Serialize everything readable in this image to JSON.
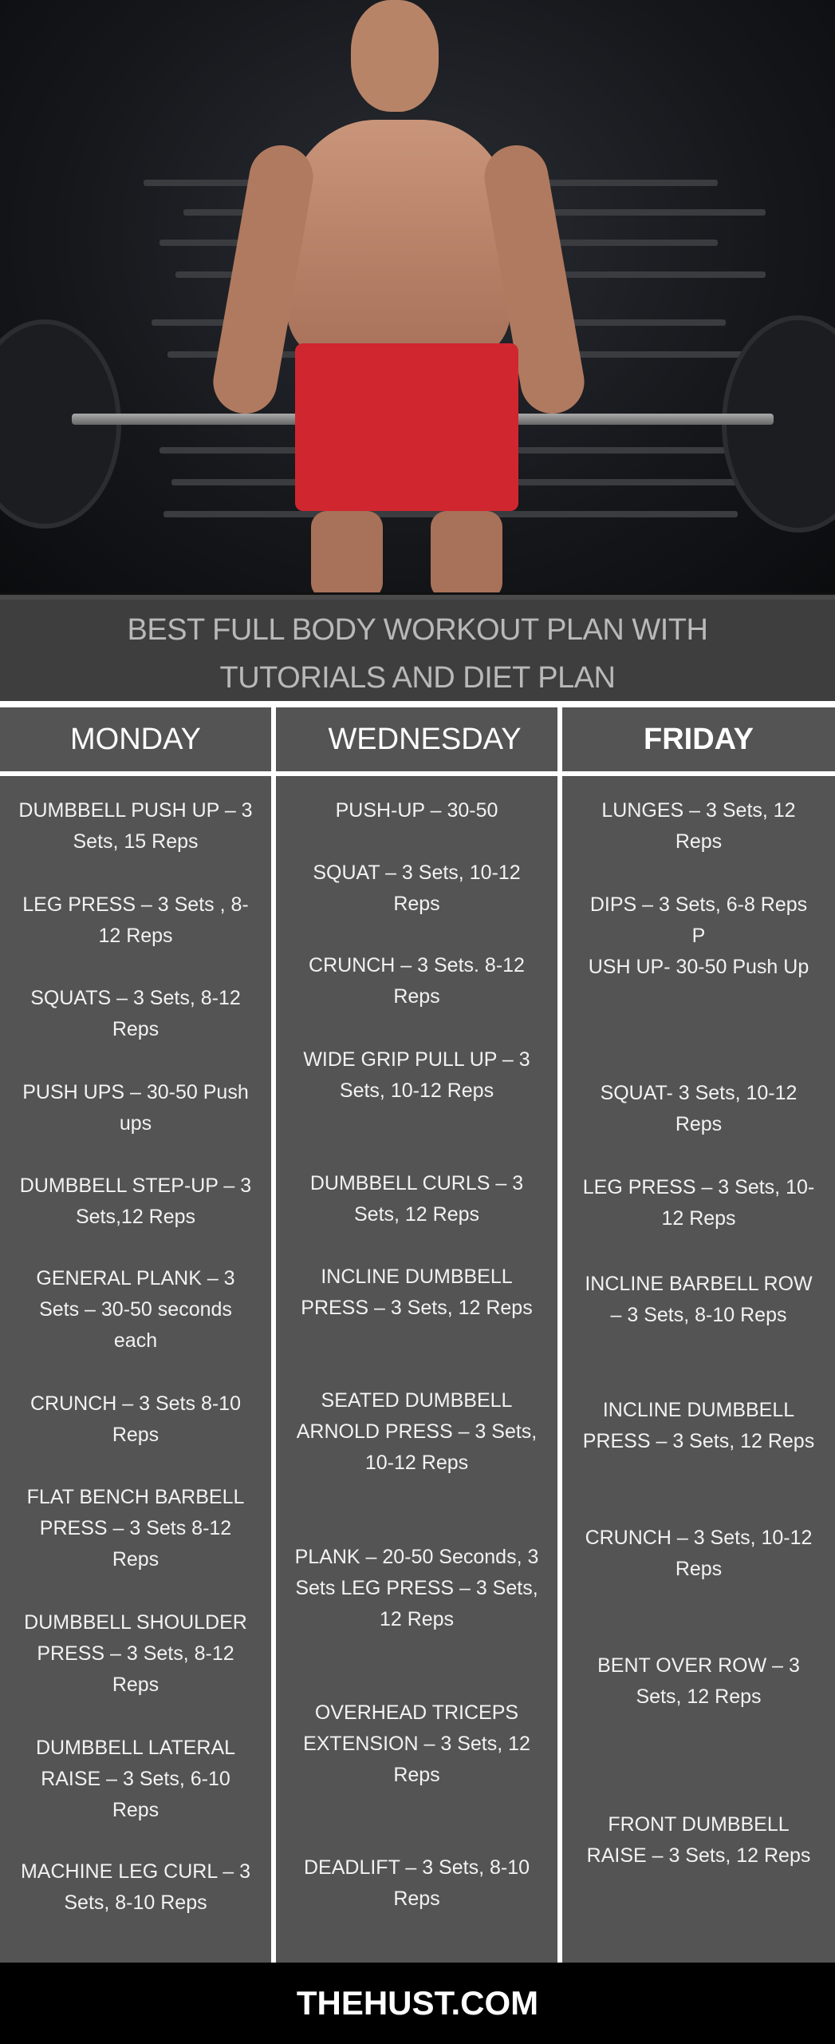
{
  "banner": {
    "title_line1": "BEST FULL BODY WORKOUT PLAN WITH",
    "title_line2": "TUTORIALS AND DIET PLAN"
  },
  "days": [
    {
      "label": "MONDAY",
      "items": [
        "DUMBBELL PUSH UP – 3 Sets, 15 Reps",
        "LEG PRESS – 3 Sets , 8-12 Reps",
        "SQUATS – 3 Sets, 8-12 Reps",
        "PUSH UPS – 30-50 Push ups",
        "DUMBBELL STEP-UP – 3 Sets,12 Reps",
        "GENERAL PLANK – 3 Sets – 30-50 seconds each",
        "CRUNCH – 3 Sets 8-10 Reps",
        "FLAT BENCH BARBELL PRESS – 3 Sets 8-12 Reps",
        "DUMBBELL SHOULDER PRESS – 3 Sets, 8-12 Reps",
        "DUMBBELL LATERAL RAISE – 3 Sets, 6-10 Reps",
        "MACHINE LEG CURL – 3 Sets, 8-10 Reps"
      ]
    },
    {
      "label": "WEDNESDAY",
      "items": [
        "PUSH-UP – 30-50",
        "SQUAT – 3 Sets, 10-12 Reps",
        "CRUNCH – 3 Sets. 8-12 Reps",
        "WIDE GRIP PULL UP – 3 Sets, 10-12 Reps",
        "DUMBBELL CURLS – 3 Sets, 12 Reps",
        "INCLINE DUMBBELL PRESS – 3 Sets, 12 Reps",
        "SEATED DUMBBELL ARNOLD PRESS – 3 Sets, 10-12 Reps",
        "PLANK – 20-50 Seconds, 3 Sets LEG PRESS – 3 Sets, 12 Reps",
        "OVERHEAD TRICEPS EXTENSION – 3 Sets, 12 Reps",
        "DEADLIFT – 3 Sets, 8-10 Reps"
      ]
    },
    {
      "label": "FRIDAY",
      "items": [
        "LUNGES – 3 Sets, 12 Reps",
        "DIPS – 3 Sets, 6-8 Reps\nP\nUSH UP- 30-50 Push Up",
        "SQUAT- 3 Sets, 10-12 Reps",
        "LEG PRESS – 3 Sets, 10-12 Reps",
        "INCLINE BARBELL ROW – 3 Sets, 8-10 Reps",
        "INCLINE DUMBBELL PRESS – 3 Sets, 12 Reps",
        "CRUNCH  – 3 Sets, 10-12 Reps",
        "BENT OVER ROW – 3 Sets, 12 Reps",
        "FRONT DUMBBELL RAISE – 3 Sets, 12 Reps"
      ]
    }
  ],
  "footer": {
    "site": "THEHUST.COM"
  },
  "colors": {
    "cell_bg": "#545454",
    "title_band": "#3e3e3e",
    "title_text": "#b9b9b9",
    "footer_bg": "#000000"
  }
}
